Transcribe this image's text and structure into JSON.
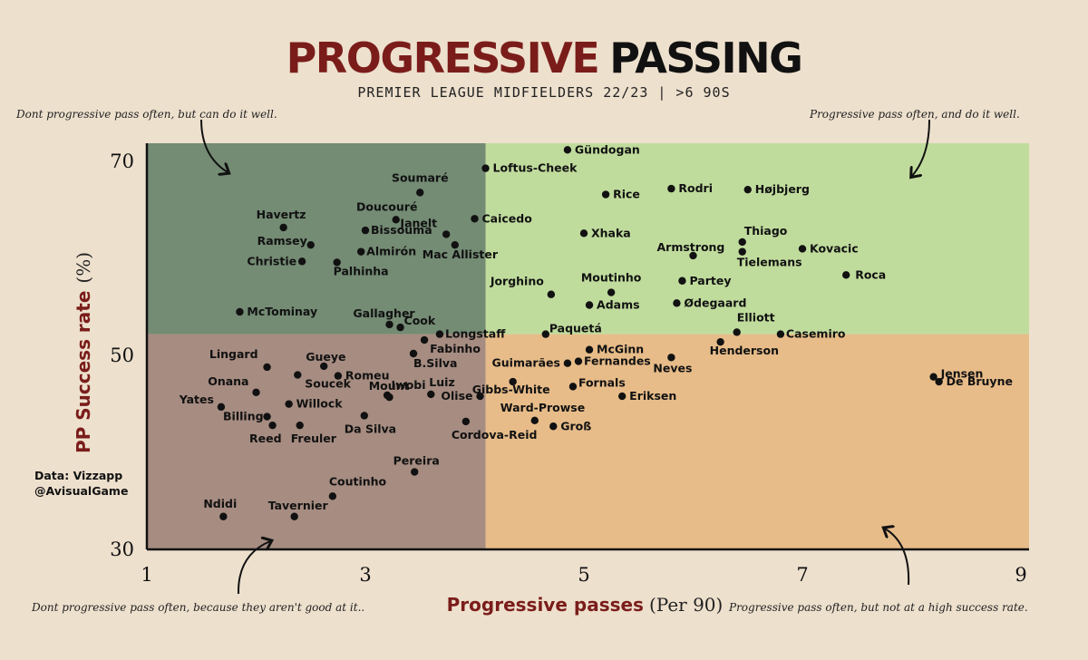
{
  "title_part1": "PROGRESSIVE",
  "title_part2": "PASSING",
  "subtitle": "PREMIER LEAGUE MIDFIELDERS 22/23  |  >6 90S",
  "annotations": {
    "top_left": "Dont progressive pass often, but can do it well.",
    "top_right": "Progressive pass often, and do it well.",
    "bottom_left": "Dont progressive pass often, because they aren't good at it..",
    "bottom_right": "Progressive pass often, but not at a high success rate."
  },
  "credit": {
    "line1": "Data: Vizzapp",
    "line2": "@AvisualGame"
  },
  "axis": {
    "ylabel": "PP Success rate",
    "ylabel_unit": "(%)",
    "xlabel": "Progressive passes",
    "xlabel_unit": "(Per 90)"
  },
  "colors": {
    "top_left": "#748b74",
    "top_right": "#c0dc9d",
    "bottom_left": "#a68c81",
    "bottom_right": "#e7bc89",
    "point": "#111111",
    "title_red": "#7a1d1a"
  },
  "chart_data": {
    "type": "scatter",
    "title": "PROGRESSIVE PASSING",
    "subtitle": "PREMIER LEAGUE MIDFIELDERS 22/23 | >6 90S",
    "xlabel": "Progressive passes (Per 90)",
    "ylabel": "PP Success rate (%)",
    "xlim": [
      1,
      9
    ],
    "ylim": [
      30,
      70
    ],
    "xticks": [
      1,
      3,
      5,
      7,
      9
    ],
    "yticks": [
      30,
      50,
      70
    ],
    "quadrant_split": {
      "x": 4.1,
      "y": 52
    },
    "grid": false,
    "points": [
      {
        "name": "Gündogan",
        "x": 4.85,
        "y": 71.0
      },
      {
        "name": "Loftus-Cheek",
        "x": 4.1,
        "y": 69.1
      },
      {
        "name": "Soumaré",
        "x": 3.5,
        "y": 66.6
      },
      {
        "name": "Rice",
        "x": 5.2,
        "y": 66.4
      },
      {
        "name": "Rodri",
        "x": 5.8,
        "y": 67.0
      },
      {
        "name": "Højbjerg",
        "x": 6.5,
        "y": 66.9
      },
      {
        "name": "Havertz",
        "x": 2.25,
        "y": 63.0
      },
      {
        "name": "Doucouré",
        "x": 3.28,
        "y": 63.8
      },
      {
        "name": "Caicedo",
        "x": 4.0,
        "y": 63.9
      },
      {
        "name": "Bissouma",
        "x": 3.0,
        "y": 62.7
      },
      {
        "name": "Janelt",
        "x": 3.74,
        "y": 62.3
      },
      {
        "name": "Xhaka",
        "x": 5.0,
        "y": 62.4
      },
      {
        "name": "Thiago",
        "x": 6.45,
        "y": 61.5
      },
      {
        "name": "Ramsey",
        "x": 2.5,
        "y": 61.2
      },
      {
        "name": "Mac Allister",
        "x": 3.82,
        "y": 61.2
      },
      {
        "name": "Kovacic",
        "x": 7.0,
        "y": 60.8
      },
      {
        "name": "Almirón",
        "x": 2.96,
        "y": 60.5
      },
      {
        "name": "Tielemans",
        "x": 6.45,
        "y": 60.5
      },
      {
        "name": "Armstrong",
        "x": 6.0,
        "y": 60.1
      },
      {
        "name": "Christie",
        "x": 2.42,
        "y": 59.5
      },
      {
        "name": "Palhinha",
        "x": 2.74,
        "y": 59.4
      },
      {
        "name": "Roca",
        "x": 7.4,
        "y": 58.1
      },
      {
        "name": "Partey",
        "x": 5.9,
        "y": 57.5
      },
      {
        "name": "Jorghino",
        "x": 4.7,
        "y": 56.1
      },
      {
        "name": "Moutinho",
        "x": 5.25,
        "y": 56.3
      },
      {
        "name": "Adams",
        "x": 5.05,
        "y": 55.0
      },
      {
        "name": "Ødegaard",
        "x": 5.85,
        "y": 55.2
      },
      {
        "name": "McTominay",
        "x": 1.85,
        "y": 54.3
      },
      {
        "name": "Gallagher",
        "x": 3.22,
        "y": 53.0
      },
      {
        "name": "Cook",
        "x": 3.32,
        "y": 52.7
      },
      {
        "name": "Longstaff",
        "x": 3.68,
        "y": 52.0
      },
      {
        "name": "Paquetá",
        "x": 4.65,
        "y": 52.0
      },
      {
        "name": "Elliott",
        "x": 6.4,
        "y": 52.2
      },
      {
        "name": "Casemiro",
        "x": 6.8,
        "y": 52.0
      },
      {
        "name": "Fabinho",
        "x": 3.54,
        "y": 51.4
      },
      {
        "name": "Henderson",
        "x": 6.25,
        "y": 51.2
      },
      {
        "name": "B.Silva",
        "x": 3.44,
        "y": 50.0
      },
      {
        "name": "McGinn",
        "x": 5.05,
        "y": 50.4
      },
      {
        "name": "Fernandes",
        "x": 4.95,
        "y": 49.2
      },
      {
        "name": "Guimarães",
        "x": 4.85,
        "y": 49.0
      },
      {
        "name": "Neves",
        "x": 5.8,
        "y": 49.6
      },
      {
        "name": "Lingard",
        "x": 2.1,
        "y": 48.6
      },
      {
        "name": "Gueye",
        "x": 2.62,
        "y": 48.7
      },
      {
        "name": "Soucek",
        "x": 2.38,
        "y": 47.8
      },
      {
        "name": "Romeu",
        "x": 2.75,
        "y": 47.7
      },
      {
        "name": "Jensen",
        "x": 8.2,
        "y": 47.6
      },
      {
        "name": "De Bruyne",
        "x": 8.25,
        "y": 47.1
      },
      {
        "name": "Gibbs-White",
        "x": 4.35,
        "y": 47.1
      },
      {
        "name": "Fornals",
        "x": 4.9,
        "y": 46.6
      },
      {
        "name": "Onana",
        "x": 2.0,
        "y": 46.0
      },
      {
        "name": "Mount",
        "x": 3.2,
        "y": 45.7
      },
      {
        "name": "Luiz",
        "x": 3.6,
        "y": 45.8
      },
      {
        "name": "Eriksen",
        "x": 5.35,
        "y": 45.6
      },
      {
        "name": "Yates",
        "x": 1.68,
        "y": 44.5
      },
      {
        "name": "Willock",
        "x": 2.3,
        "y": 44.8
      },
      {
        "name": "Iwobi",
        "x": 3.22,
        "y": 45.5
      },
      {
        "name": "Olise",
        "x": 4.05,
        "y": 45.6
      },
      {
        "name": "Billing",
        "x": 2.1,
        "y": 43.5
      },
      {
        "name": "Reed",
        "x": 2.15,
        "y": 42.6
      },
      {
        "name": "Freuler",
        "x": 2.4,
        "y": 42.6
      },
      {
        "name": "Da Silva",
        "x": 2.99,
        "y": 43.6
      },
      {
        "name": "Cordova-Reid",
        "x": 3.92,
        "y": 43.0
      },
      {
        "name": "Ward-Prowse",
        "x": 4.55,
        "y": 43.1
      },
      {
        "name": "Groß",
        "x": 4.72,
        "y": 42.5
      },
      {
        "name": "Pereira",
        "x": 3.45,
        "y": 37.8
      },
      {
        "name": "Coutinho",
        "x": 2.7,
        "y": 35.3
      },
      {
        "name": "Ndidi",
        "x": 1.7,
        "y": 33.2
      },
      {
        "name": "Tavernier",
        "x": 2.35,
        "y": 33.2
      }
    ]
  }
}
